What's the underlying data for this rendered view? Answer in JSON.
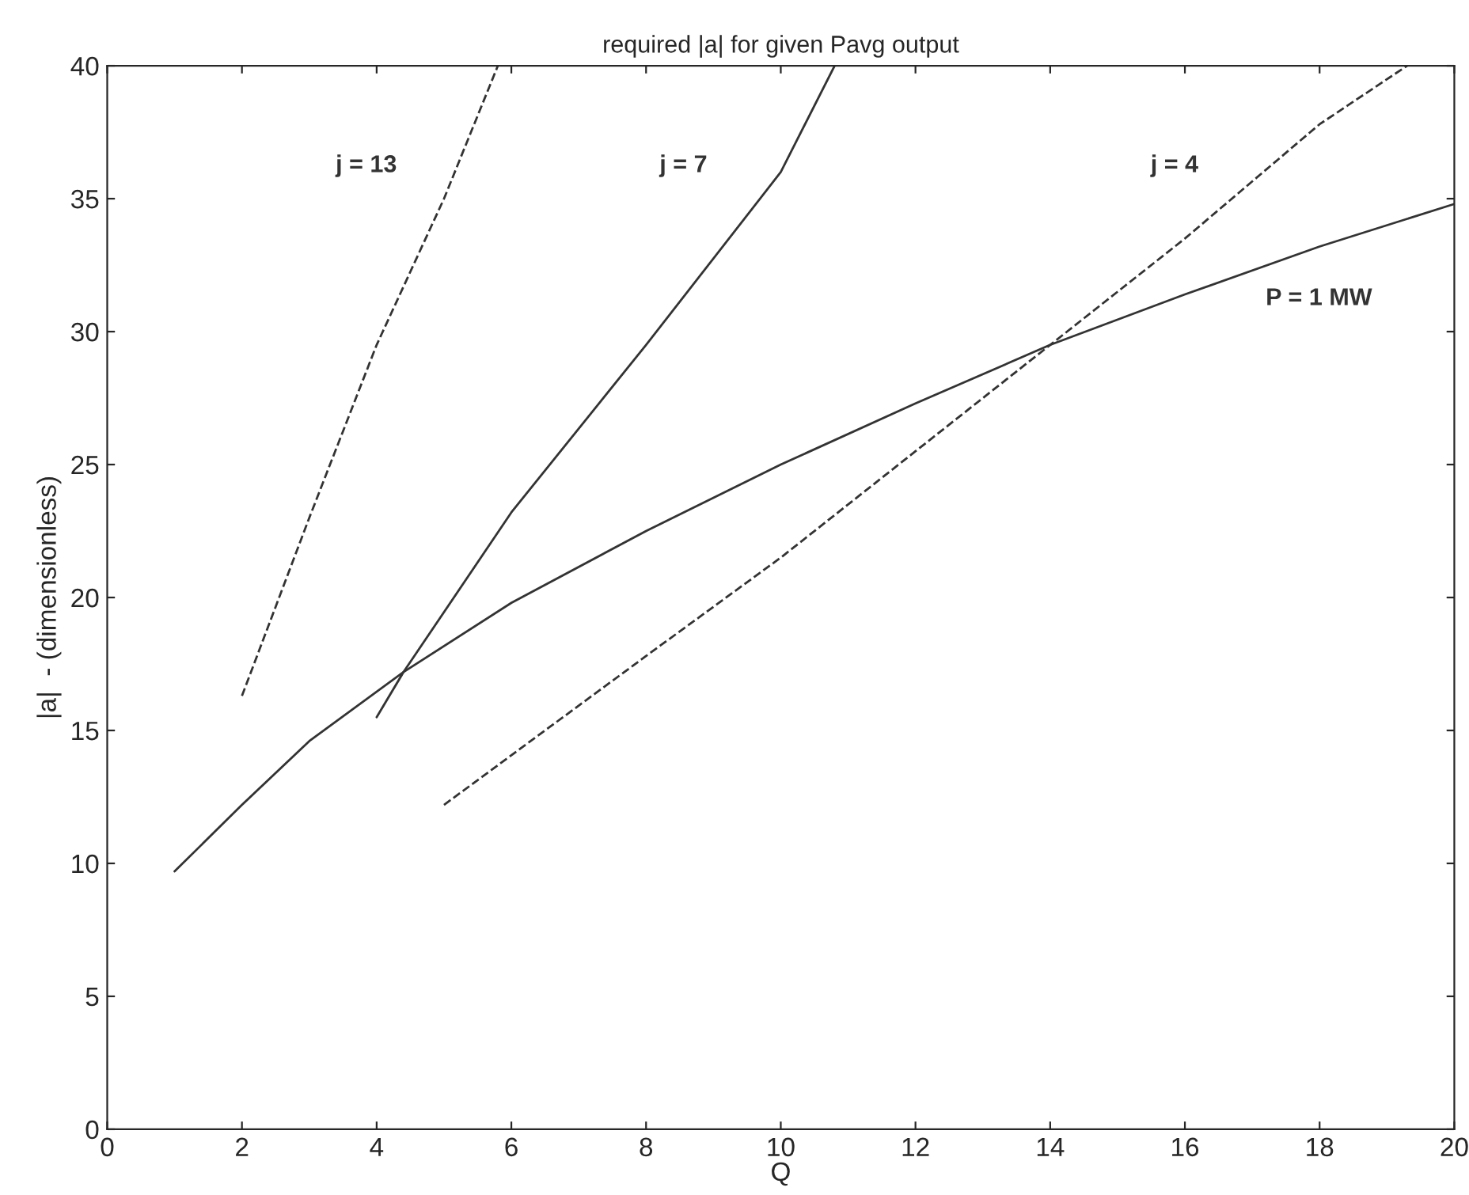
{
  "chart_data": {
    "type": "line",
    "title": "required |a| for given Pavg output",
    "xlabel": "Q",
    "ylabel": "|a|  - (dimensionless)",
    "series": [
      {
        "x": [
          1,
          2,
          3,
          4.4,
          6,
          8,
          10,
          12,
          14,
          16,
          18,
          20
        ],
        "values": [
          9.7,
          12.2,
          14.6,
          17.2,
          19.8,
          22.5,
          25,
          27.3,
          29.5,
          31.4,
          33.2,
          34.8
        ],
        "color": "#333333",
        "line_style": "solid",
        "name": "P = 1 MW"
      },
      {
        "x": [
          2,
          3,
          4,
          5,
          5.8
        ],
        "values": [
          16.3,
          23,
          29.5,
          35,
          40
        ],
        "color": "#333333",
        "line_style": "dashed",
        "name": "j = 13"
      },
      {
        "x": [
          4,
          4.4,
          6,
          8,
          10,
          10.8
        ],
        "values": [
          15.5,
          17.2,
          23.2,
          29.5,
          36,
          40
        ],
        "color": "#333333",
        "line_style": "solid",
        "name": "j = 7"
      },
      {
        "x": [
          5,
          8,
          10,
          12,
          14,
          16,
          18,
          19.3
        ],
        "values": [
          12.2,
          17.8,
          21.5,
          25.5,
          29.5,
          33.5,
          37.8,
          40
        ],
        "color": "#333333",
        "line_style": "dashed",
        "name": "j = 4"
      }
    ],
    "xlim": [
      0,
      20
    ],
    "ylim": [
      0,
      40
    ],
    "xticks": [
      0,
      2,
      4,
      6,
      8,
      10,
      12,
      14,
      16,
      18,
      20
    ],
    "yticks": [
      0,
      5,
      10,
      15,
      20,
      25,
      30,
      35,
      40
    ],
    "grid": false,
    "legend": false
  }
}
